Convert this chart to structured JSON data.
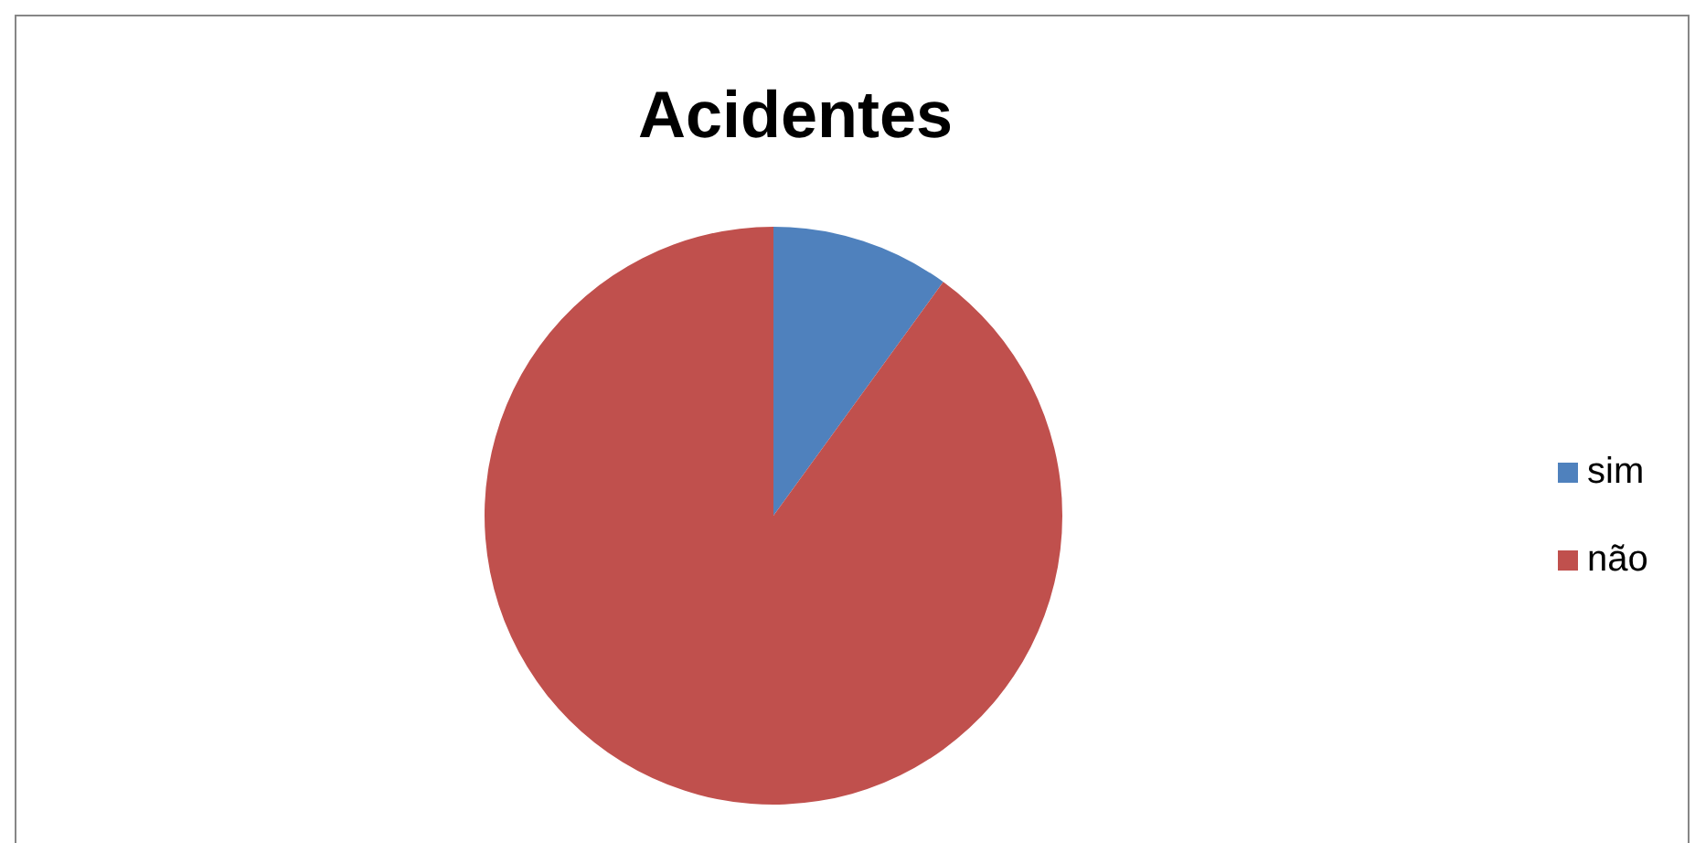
{
  "chart_data": {
    "type": "pie",
    "title": "Acidentes",
    "categories": [
      "sim",
      "não"
    ],
    "values": [
      10,
      90
    ],
    "colors": [
      "#4f81bd",
      "#c0504d"
    ],
    "legend": "right"
  }
}
